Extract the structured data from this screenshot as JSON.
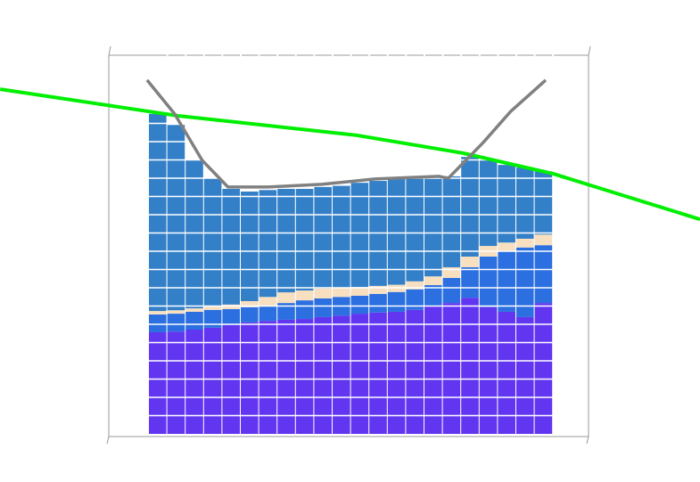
{
  "chart_data": {
    "type": "bar",
    "stacked": true,
    "ylim": [
      0,
      100
    ],
    "series": [
      {
        "color": "#6236f0",
        "values": [
          26.7,
          26.9,
          27.4,
          27.9,
          28.6,
          29.3,
          29.7,
          30.0,
          30.2,
          30.7,
          31.1,
          31.6,
          31.9,
          32.1,
          32.6,
          33.5,
          34.4,
          35.8,
          33.3,
          32.1,
          30.7,
          34.4
        ]
      },
      {
        "color": "#2b6fe0",
        "values": [
          4.7,
          4.7,
          4.7,
          4.7,
          4.2,
          4.0,
          4.0,
          4.4,
          4.9,
          4.9,
          4.9,
          4.7,
          4.9,
          5.2,
          5.4,
          5.6,
          6.6,
          8.0,
          13.3,
          15.9,
          18.3,
          15.2
        ]
      },
      {
        "color": "#f7dfc0",
        "values": [
          0.9,
          0.9,
          0.9,
          0.9,
          1.2,
          1.6,
          2.3,
          2.8,
          2.6,
          2.6,
          2.3,
          2.3,
          2.1,
          1.9,
          2.1,
          2.3,
          2.8,
          2.8,
          2.8,
          2.3,
          2.3,
          2.8
        ]
      },
      {
        "color": "#3480c8",
        "values": [
          51.8,
          48.7,
          38.9,
          33.7,
          30.4,
          28.8,
          28.1,
          27.2,
          26.7,
          26.7,
          26.9,
          27.4,
          27.6,
          28.1,
          27.4,
          26.2,
          23.9,
          26.2,
          22.5,
          20.4,
          18.7,
          16.6
        ]
      }
    ],
    "lines": [
      {
        "color": "#00ee00",
        "x": [
          -8.6,
          1.1,
          10.8,
          16.6,
          21.5,
          29.5
        ],
        "values": [
          90.6,
          83.6,
          78.5,
          73.8,
          68.4,
          56.4
        ]
      },
      {
        "color": "#808080",
        "x": [
          -0.6,
          0.9,
          2.4,
          3.8,
          6.0,
          8.9,
          11.8,
          15.3,
          15.8,
          17.7,
          19.2,
          21.1
        ],
        "values": [
          93.0,
          84.1,
          71.9,
          64.9,
          64.9,
          65.6,
          67.0,
          67.7,
          67.2,
          76.6,
          84.8,
          93.0
        ]
      }
    ]
  }
}
